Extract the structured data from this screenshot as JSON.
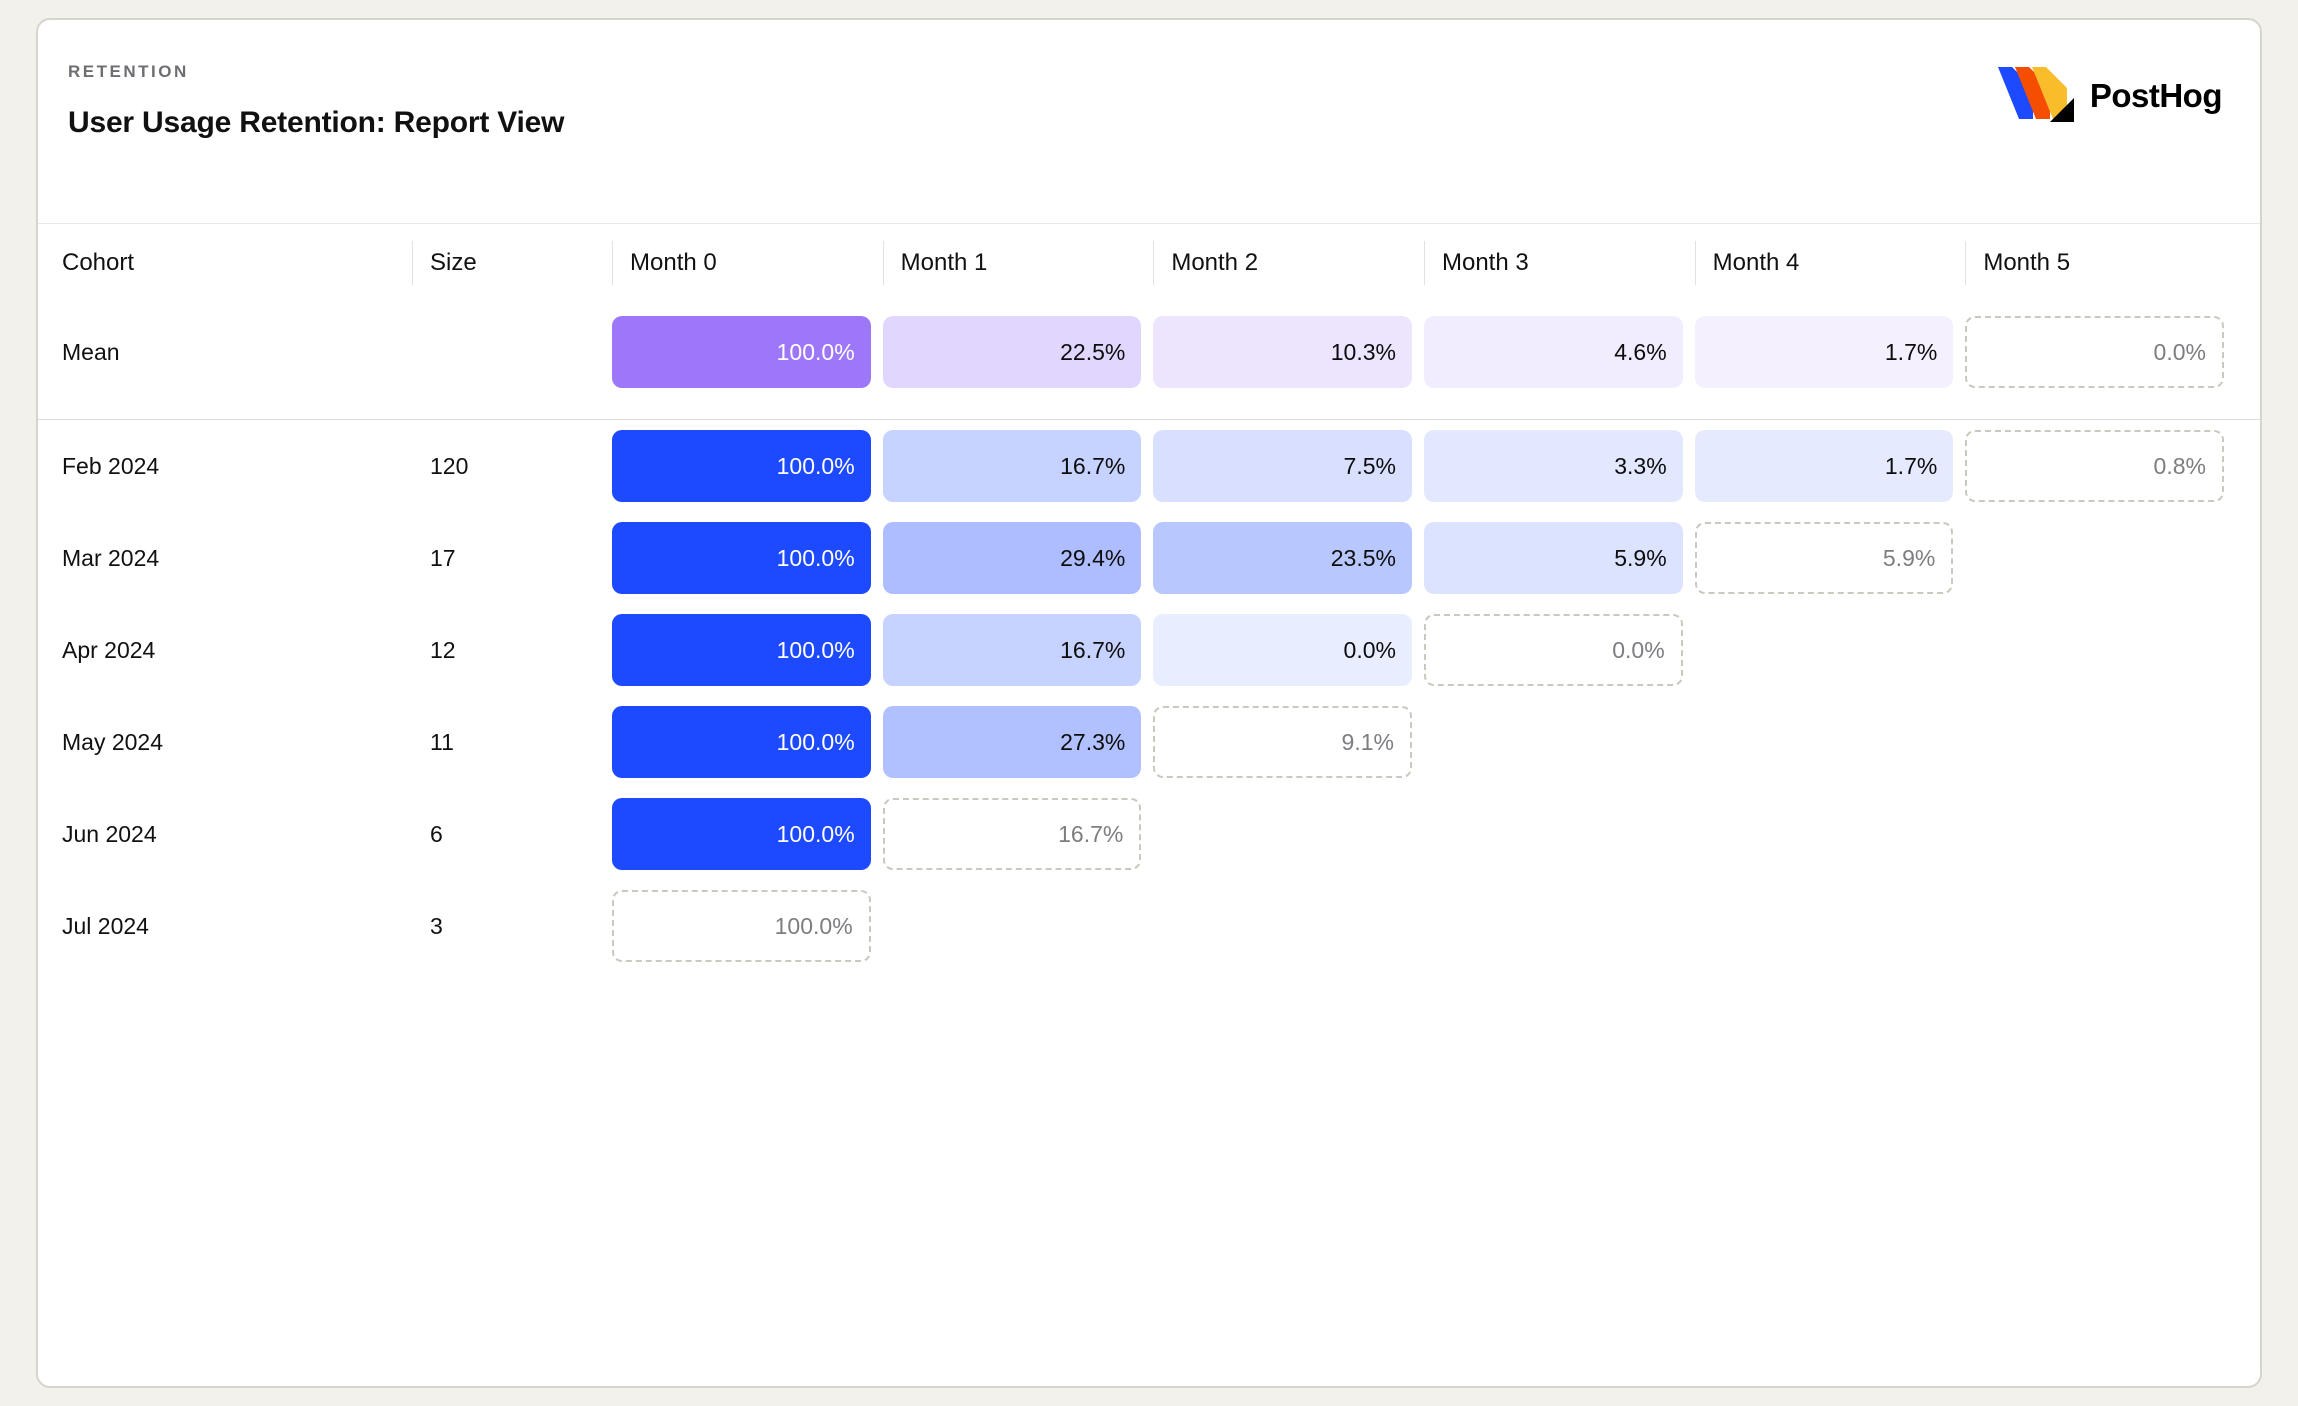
{
  "header": {
    "eyebrow": "RETENTION",
    "title": "User Usage Retention: Report View"
  },
  "brand": {
    "name": "PostHog",
    "logo_colors": {
      "blue": "#1d4aff",
      "orange": "#f54e00",
      "yellow": "#f9bd2b",
      "black": "#000000"
    }
  },
  "colors": {
    "page_bg": "#f2f1ec",
    "card_bg": "#ffffff",
    "card_border": "#d6d5cb",
    "mean_base": "#9d77f7",
    "cohort_base": "#1d4aff",
    "dashed_border": "#c9c9c0",
    "dashed_text": "#7d7d82",
    "cell_text_dark": "#0d0d0d",
    "cell_text_light": "#ffffff"
  },
  "chart_data": {
    "type": "table",
    "title": "User Usage Retention: Report View",
    "columns": [
      "Cohort",
      "Size",
      "Month 0",
      "Month 1",
      "Month 2",
      "Month 3",
      "Month 4",
      "Month 5"
    ],
    "mean": {
      "label": "Mean",
      "size": "",
      "cells": [
        {
          "value": "100.0%",
          "pct": 100.0,
          "complete": true
        },
        {
          "value": "22.5%",
          "pct": 22.5,
          "complete": true
        },
        {
          "value": "10.3%",
          "pct": 10.3,
          "complete": true
        },
        {
          "value": "4.6%",
          "pct": 4.6,
          "complete": true
        },
        {
          "value": "1.7%",
          "pct": 1.7,
          "complete": true
        },
        {
          "value": "0.0%",
          "pct": 0.0,
          "complete": false
        }
      ]
    },
    "cohorts": [
      {
        "label": "Feb 2024",
        "size": "120",
        "cells": [
          {
            "value": "100.0%",
            "pct": 100.0,
            "complete": true
          },
          {
            "value": "16.7%",
            "pct": 16.7,
            "complete": true
          },
          {
            "value": "7.5%",
            "pct": 7.5,
            "complete": true
          },
          {
            "value": "3.3%",
            "pct": 3.3,
            "complete": true
          },
          {
            "value": "1.7%",
            "pct": 1.7,
            "complete": true
          },
          {
            "value": "0.8%",
            "pct": 0.8,
            "complete": false
          }
        ]
      },
      {
        "label": "Mar 2024",
        "size": "17",
        "cells": [
          {
            "value": "100.0%",
            "pct": 100.0,
            "complete": true
          },
          {
            "value": "29.4%",
            "pct": 29.4,
            "complete": true
          },
          {
            "value": "23.5%",
            "pct": 23.5,
            "complete": true
          },
          {
            "value": "5.9%",
            "pct": 5.9,
            "complete": true
          },
          {
            "value": "5.9%",
            "pct": 5.9,
            "complete": false
          }
        ]
      },
      {
        "label": "Apr 2024",
        "size": "12",
        "cells": [
          {
            "value": "100.0%",
            "pct": 100.0,
            "complete": true
          },
          {
            "value": "16.7%",
            "pct": 16.7,
            "complete": true
          },
          {
            "value": "0.0%",
            "pct": 0.0,
            "complete": true
          },
          {
            "value": "0.0%",
            "pct": 0.0,
            "complete": false
          }
        ]
      },
      {
        "label": "May 2024",
        "size": "11",
        "cells": [
          {
            "value": "100.0%",
            "pct": 100.0,
            "complete": true
          },
          {
            "value": "27.3%",
            "pct": 27.3,
            "complete": true
          },
          {
            "value": "9.1%",
            "pct": 9.1,
            "complete": false
          }
        ]
      },
      {
        "label": "Jun 2024",
        "size": "6",
        "cells": [
          {
            "value": "100.0%",
            "pct": 100.0,
            "complete": true
          },
          {
            "value": "16.7%",
            "pct": 16.7,
            "complete": false
          }
        ]
      },
      {
        "label": "Jul 2024",
        "size": "3",
        "cells": [
          {
            "value": "100.0%",
            "pct": 100.0,
            "complete": false
          }
        ]
      }
    ]
  }
}
